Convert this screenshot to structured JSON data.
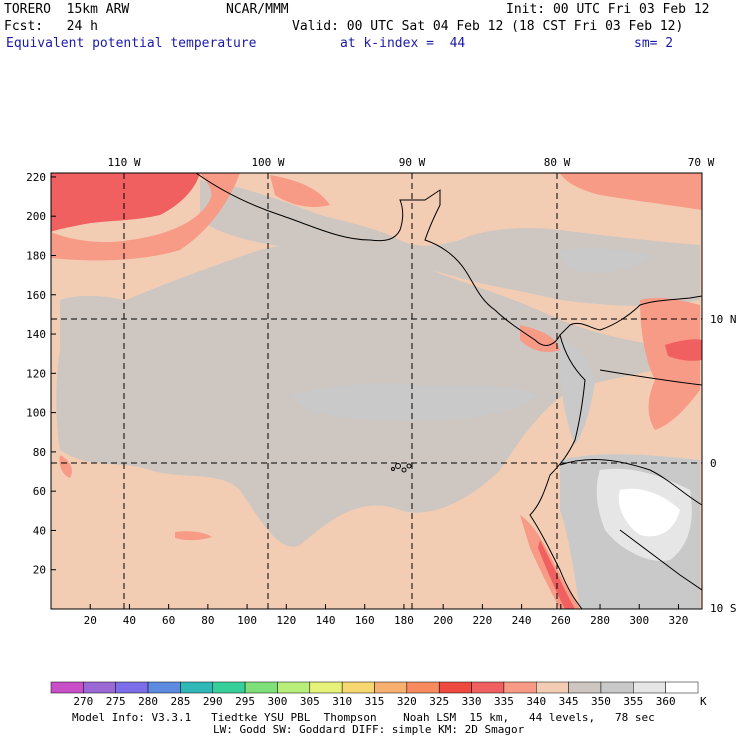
{
  "header": {
    "model": "TORERO  15km ARW",
    "center": "NCAR/MMM",
    "init": "Init: 00 UTC Fri 03 Feb 12",
    "fcst": "Fcst:   24 h",
    "valid": "Valid: 00 UTC Sat 04 Feb 12 (18 CST Fri 03 Feb 12)",
    "field": "Equivalent potential temperature",
    "level": "at k-index =  44",
    "smooth": "sm= 2"
  },
  "map": {
    "lon_labels": [
      "110 W",
      "100 W",
      "90 W",
      "80 W",
      "70 W"
    ],
    "lat_labels": [
      "10 N",
      "0",
      "10 S"
    ],
    "x_ticks": [
      "20",
      "40",
      "60",
      "80",
      "100",
      "120",
      "140",
      "160",
      "180",
      "200",
      "220",
      "240",
      "260",
      "280",
      "300",
      "320"
    ],
    "y_ticks": [
      "220",
      "200",
      "180",
      "160",
      "140",
      "120",
      "100",
      "80",
      "60",
      "40",
      "20"
    ]
  },
  "colorbar": {
    "labels": [
      "270",
      "275",
      "280",
      "285",
      "290",
      "295",
      "300",
      "305",
      "310",
      "315",
      "320",
      "325",
      "330",
      "335",
      "340",
      "345",
      "350",
      "355",
      "360"
    ],
    "unit": "K",
    "colors": [
      "#c94fc9",
      "#9b69d6",
      "#7c6ee8",
      "#5c8be0",
      "#30b8b8",
      "#36cf9a",
      "#7fe07a",
      "#b8ef7a",
      "#e6f27a",
      "#f7d770",
      "#f7b070",
      "#f78a5e",
      "#ee4a40",
      "#f06060",
      "#f79a86",
      "#f2cdb4",
      "#cdc6c1",
      "#c9c9c9",
      "#e6e6e6",
      "#ffffff"
    ]
  },
  "footer": {
    "line1": "Model Info: V3.3.1   Tiedtke YSU PBL  Thompson    Noah LSM  15 km,   44 levels,   78 sec",
    "line2": "LW: Godd SW: Goddard DIFF: simple KM: 2D Smagor"
  }
}
